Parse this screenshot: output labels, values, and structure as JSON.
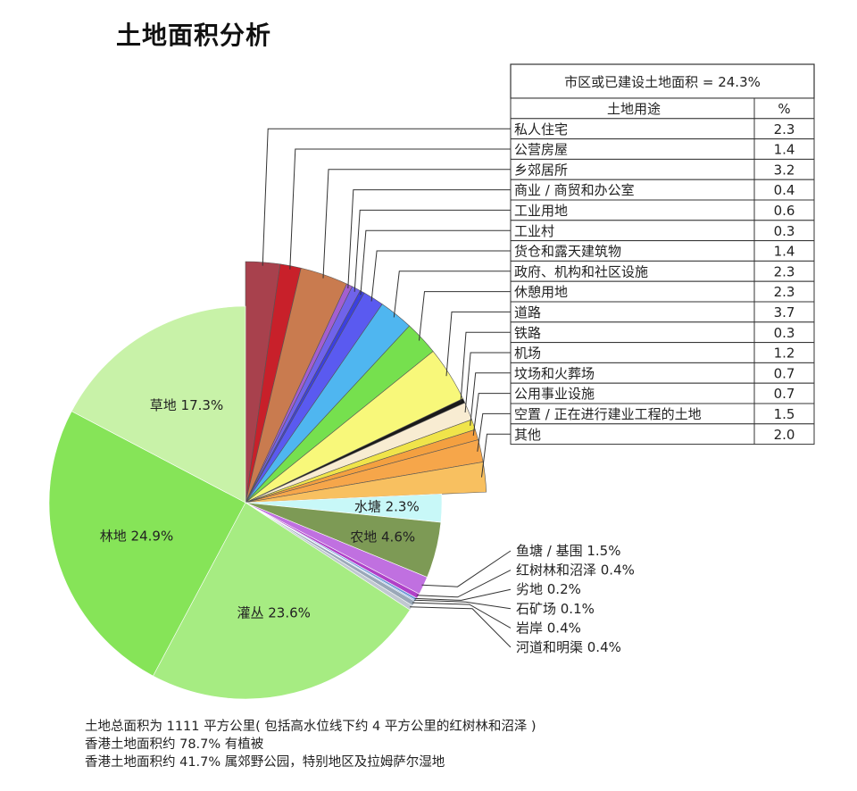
{
  "page_title": "土地面积分析",
  "notes": [
    "土地总面积为 1111 平方公里( 包括高水位线下约 4 平方公里的红树林和沼泽 )",
    "香港土地面积约 78.7% 有植被",
    "香港土地面积约 41.7% 属郊野公园，特别地区及拉姆萨尔湿地"
  ],
  "chart_data": {
    "type": "pie",
    "title": "土地面积分析",
    "built_up": {
      "header": "市区或已建设土地面积 = 24.3%",
      "col_use": "土地用途",
      "col_pct": "%",
      "rows": [
        {
          "label": "私人住宅",
          "value": 2.3,
          "value_text": "2.3",
          "color": "#a8414d"
        },
        {
          "label": "公营房屋",
          "value": 1.4,
          "value_text": "1.4",
          "color": "#c8202a"
        },
        {
          "label": "乡郊居所",
          "value": 3.2,
          "value_text": "3.2",
          "color": "#c97b4f"
        },
        {
          "label": "商业 / 商贸和办公室",
          "value": 0.4,
          "value_text": "0.4",
          "color": "#a35fd0"
        },
        {
          "label": "工业用地",
          "value": 0.6,
          "value_text": "0.6",
          "color": "#7063ea"
        },
        {
          "label": "工业村",
          "value": 0.3,
          "value_text": "0.3",
          "color": "#3b3fe0"
        },
        {
          "label": "货仓和露天建筑物",
          "value": 1.4,
          "value_text": "1.4",
          "color": "#5a5af0"
        },
        {
          "label": "政府、机构和社区设施",
          "value": 2.3,
          "value_text": "2.3",
          "color": "#4fb6f0"
        },
        {
          "label": "休憩用地",
          "value": 2.3,
          "value_text": "2.3",
          "color": "#76e04e"
        },
        {
          "label": "道路",
          "value": 3.7,
          "value_text": "3.7",
          "color": "#f8f87a"
        },
        {
          "label": "铁路",
          "value": 0.3,
          "value_text": "0.3",
          "color": "#1a1a1a"
        },
        {
          "label": "机场",
          "value": 1.2,
          "value_text": "1.2",
          "color": "#f8ecd2"
        },
        {
          "label": "坟场和火葬场",
          "value": 0.7,
          "value_text": "0.7",
          "color": "#f0e44a"
        },
        {
          "label": "公用事业设施",
          "value": 0.7,
          "value_text": "0.7",
          "color": "#f4a040"
        },
        {
          "label": "空置 / 正在进行建业工程的土地",
          "value": 1.5,
          "value_text": "1.5",
          "color": "#f6a64a"
        },
        {
          "label": "其他",
          "value": 2.0,
          "value_text": "2.0",
          "color": "#f8c060"
        }
      ]
    },
    "main_slices": [
      {
        "label": "水塘 2.3%",
        "value": 2.3,
        "color": "#c8f8f8"
      },
      {
        "label": "农地 4.6%",
        "value": 4.6,
        "color": "#7d9a55"
      }
    ],
    "small_slices": [
      {
        "label": "鱼塘 / 基围 1.5%",
        "value": 1.5,
        "color": "#c070e0"
      },
      {
        "label": "红树林和沼泽 0.4%",
        "value": 0.4,
        "color": "#b040c8"
      },
      {
        "label": "劣地 0.2%",
        "value": 0.2,
        "color": "#6e9ad8"
      },
      {
        "label": "石矿场 0.1%",
        "value": 0.1,
        "color": "#8ab0e0"
      },
      {
        "label": "岩岸 0.4%",
        "value": 0.4,
        "color": "#9aa8b8"
      },
      {
        "label": "河道和明渠 0.4%",
        "value": 0.4,
        "color": "#c0c8d0"
      }
    ],
    "vegetation_slices": [
      {
        "label": "灌丛 23.6%",
        "value": 23.6,
        "color": "#a6ec82"
      },
      {
        "label": "林地 24.9%",
        "value": 24.9,
        "color": "#86e458"
      },
      {
        "label": "草地 17.3%",
        "value": 17.3,
        "color": "#c8f2a8"
      }
    ]
  }
}
